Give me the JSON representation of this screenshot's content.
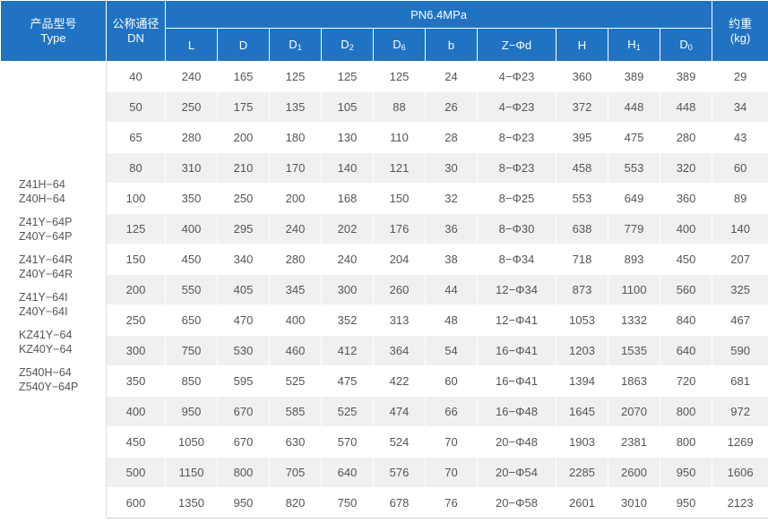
{
  "header": {
    "model_cn": "产品型号",
    "model_en": "Type",
    "dn_cn": "公称通径",
    "dn_en": "DN",
    "pressure": "PN6.4MPa",
    "weight_cn": "约重",
    "weight_unit": "(kg)",
    "cols": [
      {
        "base": "L",
        "sub": ""
      },
      {
        "base": "D",
        "sub": ""
      },
      {
        "base": "D",
        "sub": "1"
      },
      {
        "base": "D",
        "sub": "2"
      },
      {
        "base": "D",
        "sub": "6"
      },
      {
        "base": "b",
        "sub": ""
      },
      {
        "base": "Z−Φd",
        "sub": ""
      },
      {
        "base": "H",
        "sub": ""
      },
      {
        "base": "H",
        "sub": "1"
      },
      {
        "base": "D",
        "sub": "0"
      }
    ]
  },
  "models": [
    [
      "Z41H−64",
      "Z40H−64"
    ],
    [
      "Z41Y−64P",
      "Z40Y−64P"
    ],
    [
      "Z41Y−64R",
      "Z40Y−64R"
    ],
    [
      "Z41Y−64I",
      "Z40Y−64I"
    ],
    [
      "KZ41Y−64",
      "KZ40Y−64"
    ],
    [
      "Z540H−64",
      "Z540Y−64P"
    ]
  ],
  "rows": [
    [
      "40",
      "240",
      "165",
      "125",
      "125",
      "125",
      "24",
      "4−Φ23",
      "360",
      "389",
      "389",
      "29"
    ],
    [
      "50",
      "250",
      "175",
      "135",
      "105",
      "88",
      "26",
      "4−Φ23",
      "372",
      "448",
      "448",
      "34"
    ],
    [
      "65",
      "280",
      "200",
      "180",
      "130",
      "110",
      "28",
      "8−Φ23",
      "395",
      "475",
      "280",
      "43"
    ],
    [
      "80",
      "310",
      "210",
      "170",
      "140",
      "121",
      "30",
      "8−Φ23",
      "458",
      "553",
      "320",
      "60"
    ],
    [
      "100",
      "350",
      "250",
      "200",
      "168",
      "150",
      "32",
      "8−Φ25",
      "553",
      "649",
      "360",
      "89"
    ],
    [
      "125",
      "400",
      "295",
      "240",
      "202",
      "176",
      "36",
      "8−Φ30",
      "638",
      "779",
      "400",
      "140"
    ],
    [
      "150",
      "450",
      "340",
      "280",
      "240",
      "204",
      "38",
      "8−Φ34",
      "718",
      "893",
      "450",
      "207"
    ],
    [
      "200",
      "550",
      "405",
      "345",
      "300",
      "260",
      "44",
      "12−Φ34",
      "873",
      "1100",
      "560",
      "325"
    ],
    [
      "250",
      "650",
      "470",
      "400",
      "352",
      "313",
      "48",
      "12−Φ41",
      "1053",
      "1332",
      "840",
      "467"
    ],
    [
      "300",
      "750",
      "530",
      "460",
      "412",
      "364",
      "54",
      "16−Φ41",
      "1203",
      "1535",
      "640",
      "590"
    ],
    [
      "350",
      "850",
      "595",
      "525",
      "475",
      "422",
      "60",
      "16−Φ41",
      "1394",
      "1863",
      "720",
      "681"
    ],
    [
      "400",
      "950",
      "670",
      "585",
      "525",
      "474",
      "66",
      "16−Φ48",
      "1645",
      "2070",
      "800",
      "972"
    ],
    [
      "450",
      "1050",
      "670",
      "630",
      "570",
      "524",
      "70",
      "20−Φ48",
      "1903",
      "2381",
      "800",
      "1269"
    ],
    [
      "500",
      "1150",
      "800",
      "705",
      "640",
      "576",
      "70",
      "20−Φ54",
      "2285",
      "2600",
      "950",
      "1606"
    ],
    [
      "600",
      "1350",
      "950",
      "820",
      "750",
      "678",
      "76",
      "20−Φ58",
      "2601",
      "3010",
      "950",
      "2123"
    ]
  ],
  "colors": {
    "header_bg": "#1f73c2",
    "header_text": "#ffffff",
    "stripe": "#eef0f2",
    "body_text": "#555555"
  }
}
